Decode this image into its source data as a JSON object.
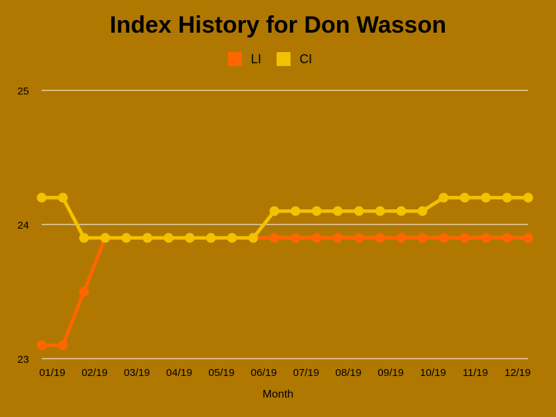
{
  "chart_data": {
    "type": "line",
    "title": "Index History for Don Wasson",
    "xlabel": "Month",
    "ylabel": "",
    "ylim": [
      23,
      25
    ],
    "yticks": [
      "23",
      "24",
      "25"
    ],
    "grid": true,
    "legend_position": "top-center",
    "background_color": "#b07800",
    "x_tick_labels": [
      "01/19",
      "02/19",
      "03/19",
      "04/19",
      "05/19",
      "06/19",
      "07/19",
      "08/19",
      "09/19",
      "10/19",
      "11/19",
      "12/19"
    ],
    "series": [
      {
        "name": "LI",
        "color": "#ff6600",
        "values": [
          23.1,
          23.1,
          23.5,
          23.9,
          23.9,
          23.9,
          23.9,
          23.9,
          23.9,
          23.9,
          23.9,
          23.9,
          23.9,
          23.9,
          23.9,
          23.9,
          23.9,
          23.9,
          23.9,
          23.9,
          23.9,
          23.9,
          23.9,
          23.9
        ]
      },
      {
        "name": "CI",
        "color": "#f2c200",
        "values": [
          24.2,
          24.2,
          23.9,
          23.9,
          23.9,
          23.9,
          23.9,
          23.9,
          23.9,
          23.9,
          23.9,
          24.1,
          24.1,
          24.1,
          24.1,
          24.1,
          24.1,
          24.1,
          24.1,
          24.2,
          24.2,
          24.2,
          24.2,
          24.2
        ]
      }
    ]
  }
}
